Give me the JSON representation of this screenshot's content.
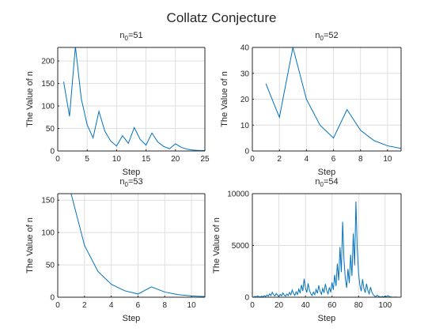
{
  "figure": {
    "title": "Collatz Conjecture"
  },
  "chart_data": [
    {
      "type": "line",
      "title_base": "n",
      "title_sub": "0",
      "title_tail": "=51",
      "xlabel": "Step",
      "ylabel": "The Value of n",
      "xlim": [
        0,
        25
      ],
      "ylim": [
        0,
        230
      ],
      "xticks": [
        0,
        5,
        10,
        15,
        20,
        25
      ],
      "yticks": [
        0,
        50,
        100,
        150,
        200
      ],
      "grid": true,
      "series": [
        {
          "color": "#0072bd",
          "x": [
            1,
            2,
            3,
            4,
            5,
            6,
            7,
            8,
            9,
            10,
            11,
            12,
            13,
            14,
            15,
            16,
            17,
            18,
            19,
            20,
            21,
            22,
            23,
            24,
            25
          ],
          "y": [
            154,
            77,
            232,
            116,
            58,
            29,
            88,
            44,
            22,
            11,
            34,
            17,
            52,
            26,
            13,
            40,
            20,
            10,
            5,
            16,
            8,
            4,
            2,
            1,
            1
          ]
        }
      ]
    },
    {
      "type": "line",
      "title_base": "n",
      "title_sub": "0",
      "title_tail": "=52",
      "xlabel": "Step",
      "ylabel": "The Value of n",
      "xlim": [
        0,
        11
      ],
      "ylim": [
        0,
        40
      ],
      "xticks": [
        0,
        2,
        4,
        6,
        8,
        10
      ],
      "yticks": [
        0,
        10,
        20,
        30,
        40
      ],
      "grid": true,
      "series": [
        {
          "color": "#0072bd",
          "x": [
            1,
            2,
            3,
            4,
            5,
            6,
            7,
            8,
            9,
            10,
            11
          ],
          "y": [
            26,
            13,
            40,
            20,
            10,
            5,
            16,
            8,
            4,
            2,
            1
          ]
        }
      ]
    },
    {
      "type": "line",
      "title_base": "n",
      "title_sub": "0",
      "title_tail": "=53",
      "xlabel": "Step",
      "ylabel": "The Value of n",
      "xlim": [
        0,
        11
      ],
      "ylim": [
        0,
        160
      ],
      "xticks": [
        0,
        2,
        4,
        6,
        8,
        10
      ],
      "yticks": [
        0,
        50,
        100,
        150
      ],
      "grid": true,
      "series": [
        {
          "color": "#0072bd",
          "x": [
            1,
            2,
            3,
            4,
            5,
            6,
            7,
            8,
            9,
            10,
            11
          ],
          "y": [
            160,
            80,
            40,
            20,
            10,
            5,
            16,
            8,
            4,
            2,
            1
          ]
        }
      ]
    },
    {
      "type": "line",
      "title_base": "n",
      "title_sub": "0",
      "title_tail": "=54",
      "xlabel": "Step",
      "ylabel": "The Value of n",
      "xlim": [
        0,
        112
      ],
      "ylim": [
        0,
        10000
      ],
      "xticks": [
        0,
        20,
        40,
        60,
        80,
        100
      ],
      "yticks": [
        0,
        5000,
        10000
      ],
      "grid": true,
      "series": [
        {
          "color": "#0072bd",
          "x": [
            1,
            2,
            3,
            4,
            5,
            6,
            7,
            8,
            9,
            10,
            11,
            12,
            13,
            14,
            15,
            16,
            17,
            18,
            19,
            20,
            21,
            22,
            23,
            24,
            25,
            26,
            27,
            28,
            29,
            30,
            31,
            32,
            33,
            34,
            35,
            36,
            37,
            38,
            39,
            40,
            41,
            42,
            43,
            44,
            45,
            46,
            47,
            48,
            49,
            50,
            51,
            52,
            53,
            54,
            55,
            56,
            57,
            58,
            59,
            60,
            61,
            62,
            63,
            64,
            65,
            66,
            67,
            68,
            69,
            70,
            71,
            72,
            73,
            74,
            75,
            76,
            77,
            78,
            79,
            80,
            81,
            82,
            83,
            84,
            85,
            86,
            87,
            88,
            89,
            90,
            91,
            92,
            93,
            94,
            95,
            96,
            97,
            98,
            99,
            100,
            101,
            102,
            103,
            104,
            105,
            106,
            107,
            108,
            109,
            110,
            111,
            112
          ],
          "y": [
            27,
            82,
            41,
            124,
            62,
            31,
            94,
            47,
            142,
            71,
            214,
            107,
            322,
            161,
            484,
            242,
            121,
            364,
            182,
            91,
            274,
            137,
            412,
            206,
            103,
            310,
            155,
            466,
            233,
            700,
            350,
            175,
            526,
            263,
            790,
            395,
            1186,
            593,
            1780,
            890,
            445,
            1336,
            668,
            334,
            167,
            502,
            251,
            754,
            377,
            1132,
            566,
            283,
            850,
            425,
            1276,
            638,
            319,
            958,
            479,
            1438,
            719,
            2158,
            1079,
            3238,
            1619,
            4858,
            2429,
            7288,
            3644,
            1822,
            911,
            2734,
            1367,
            4102,
            2051,
            6154,
            3077,
            9232,
            4616,
            2308,
            1154,
            577,
            1732,
            866,
            433,
            1300,
            650,
            325,
            976,
            488,
            244,
            122,
            61,
            184,
            92,
            46,
            23,
            70,
            35,
            106,
            53,
            160,
            80,
            40,
            20,
            10,
            5,
            16,
            8,
            4,
            2,
            1
          ]
        }
      ]
    }
  ]
}
